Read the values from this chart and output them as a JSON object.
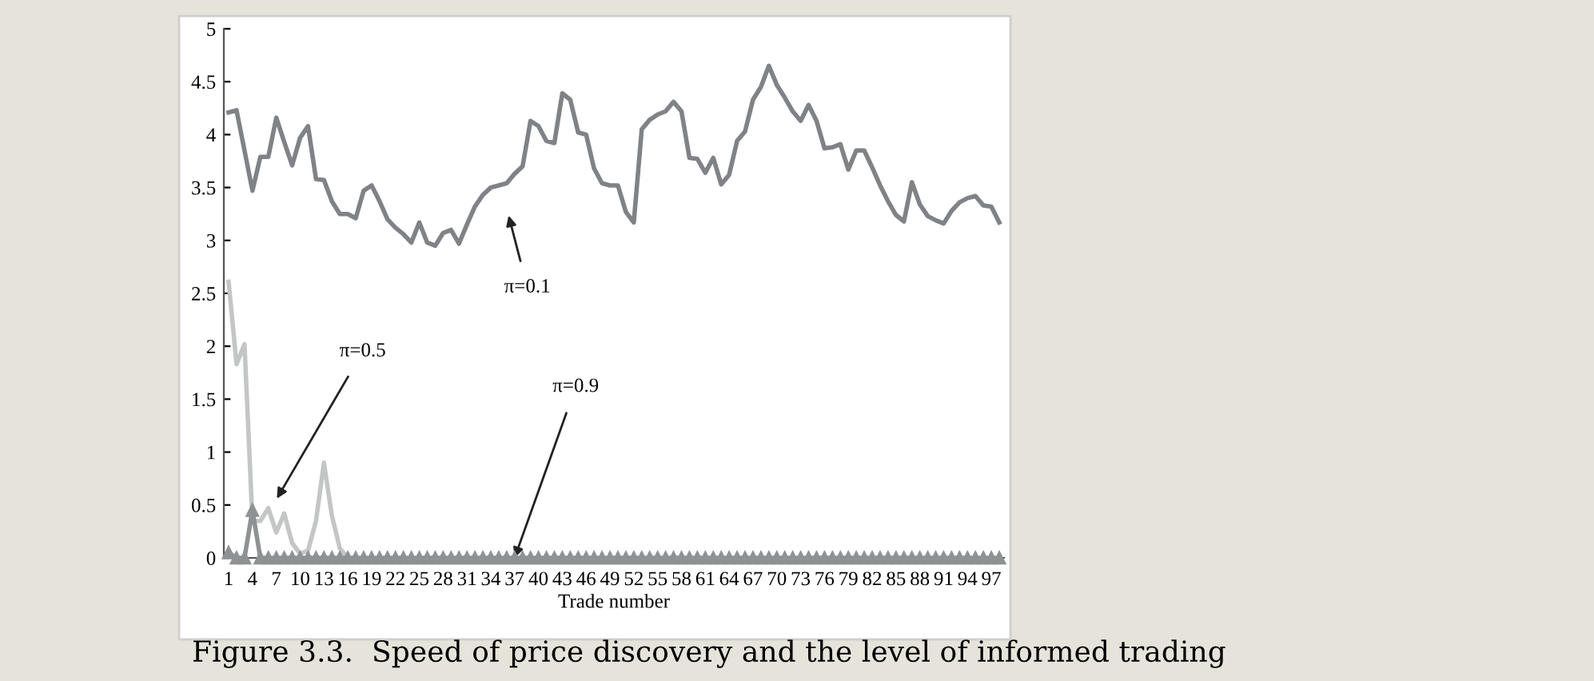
{
  "chart_data": {
    "type": "line",
    "xlabel": "Trade number",
    "categories": [
      "1",
      null,
      null,
      "4",
      null,
      null,
      "7",
      null,
      null,
      "10",
      null,
      null,
      "13",
      null,
      null,
      "16",
      null,
      null,
      "19",
      null,
      null,
      "22",
      null,
      null,
      "25",
      null,
      null,
      "28",
      null,
      null,
      "31",
      null,
      null,
      "34",
      null,
      null,
      "37",
      null,
      null,
      "40",
      null,
      null,
      "43",
      null,
      null,
      "46",
      null,
      null,
      "49",
      null,
      null,
      "52",
      null,
      null,
      "55",
      null,
      null,
      "58",
      null,
      null,
      "61",
      null,
      null,
      "64",
      null,
      null,
      "67",
      null,
      null,
      "70",
      null,
      null,
      "73",
      null,
      null,
      "76",
      null,
      null,
      "79",
      null,
      null,
      "82",
      null,
      null,
      "85",
      null,
      null,
      "88",
      null,
      null,
      "91",
      null,
      null,
      "94",
      null,
      null,
      "97",
      null
    ],
    "series": [
      {
        "color": "#7f8286",
        "values": [
          4.21,
          4.23,
          3.85,
          3.47,
          3.79,
          3.79,
          4.16,
          3.93,
          3.71,
          3.97,
          4.08,
          3.58,
          3.57,
          3.37,
          3.25,
          3.25,
          3.21,
          3.47,
          3.52,
          3.37,
          3.2,
          3.12,
          3.06,
          2.98,
          3.17,
          2.98,
          2.95,
          3.07,
          3.1,
          2.97,
          3.15,
          3.32,
          3.43,
          3.5,
          3.52,
          3.54,
          3.63,
          3.7,
          4.13,
          4.08,
          3.94,
          3.92,
          4.39,
          4.33,
          4.02,
          4.0,
          3.68,
          3.54,
          3.52,
          3.52,
          3.27,
          3.17,
          4.05,
          4.14,
          4.19,
          4.22,
          4.31,
          4.22,
          3.78,
          3.77,
          3.64,
          3.78,
          3.53,
          3.62,
          3.94,
          4.03,
          4.33,
          4.45,
          4.65,
          4.47,
          4.35,
          4.22,
          4.13,
          4.28,
          4.13,
          3.87,
          3.88,
          3.91,
          3.67,
          3.85,
          3.85,
          3.69,
          3.52,
          3.37,
          3.24,
          3.18,
          3.55,
          3.34,
          3.23,
          3.19,
          3.16,
          3.28,
          3.36,
          3.4,
          3.42,
          3.33,
          3.32,
          3.17
        ]
      },
      {
        "color": "#c4c6c6",
        "values": [
          2.61,
          1.83,
          2.02,
          0.35,
          0.35,
          0.47,
          0.24,
          0.42,
          0.14,
          0.04,
          0.07,
          0.35,
          0.9,
          0.4,
          0.09,
          0,
          null,
          null,
          null,
          null,
          null,
          null,
          null,
          null,
          null,
          null,
          null,
          null,
          null,
          null,
          null,
          null,
          null,
          null,
          null,
          null,
          null,
          null,
          null,
          null,
          null,
          null,
          null,
          null,
          null,
          null,
          null,
          null,
          null,
          null,
          null,
          null,
          null,
          null,
          null,
          null,
          null,
          null,
          null,
          null,
          null,
          null,
          null,
          null,
          null,
          null,
          null,
          null,
          null,
          null,
          null,
          null,
          null,
          null,
          null,
          null,
          null,
          null,
          null,
          null,
          null,
          null,
          null,
          null,
          null,
          null,
          null,
          null,
          null,
          null,
          null,
          null,
          null,
          null,
          null,
          null,
          null,
          null
        ]
      },
      {
        "color": "#8e9293",
        "marker": "triangle",
        "values": [
          0.05,
          0,
          0,
          0.45,
          0,
          0,
          0,
          0,
          0,
          0,
          0,
          0,
          0,
          0,
          0,
          0,
          0,
          0,
          0,
          0,
          0,
          0,
          0,
          0,
          0,
          0,
          0,
          0,
          0,
          0,
          0,
          0,
          0,
          0,
          0,
          0,
          0,
          0,
          0,
          0,
          0,
          0,
          0,
          0,
          0,
          0,
          0,
          0,
          0,
          0,
          0,
          0,
          0,
          0,
          0,
          0,
          0,
          0,
          0,
          0,
          0,
          0,
          0,
          0,
          0,
          0,
          0,
          0,
          0,
          0,
          0,
          0,
          0,
          0,
          0,
          0,
          0,
          0,
          0,
          0,
          0,
          0,
          0,
          0,
          0,
          0,
          0,
          0,
          0,
          0,
          0,
          0,
          0,
          0,
          0,
          0,
          0,
          0
        ]
      }
    ],
    "ylim": [
      0,
      5
    ],
    "yticks": [
      0,
      0.5,
      1,
      1.5,
      2,
      2.5,
      3,
      3.5,
      4,
      4.5,
      5
    ],
    "grid": false,
    "legend": false,
    "annotations": [
      "π=0.1",
      "π=0.5",
      {
        "text": "π=0.9",
        "x": "37",
        "y": 0
      },
      "Figure 3.3.  Speed of price discovery and the level of informed trading"
    ]
  }
}
